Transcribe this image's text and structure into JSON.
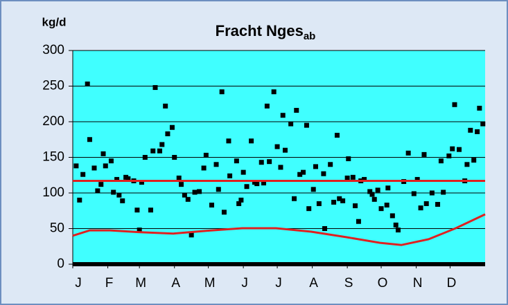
{
  "chart_data": {
    "type": "scatter",
    "title": "Fracht Nges",
    "title_subscript": "ab",
    "y_axis_label": "kg/d",
    "xlim": [
      1,
      366
    ],
    "ylim": [
      0,
      300
    ],
    "yticks": [
      0,
      50,
      100,
      150,
      200,
      250,
      300
    ],
    "xticks": [
      {
        "value": 1,
        "label": "J"
      },
      {
        "value": 32,
        "label": "F"
      },
      {
        "value": 60,
        "label": "M"
      },
      {
        "value": 91,
        "label": "A"
      },
      {
        "value": 121,
        "label": "M"
      },
      {
        "value": 152,
        "label": "J"
      },
      {
        "value": 182,
        "label": "J"
      },
      {
        "value": 213,
        "label": "A"
      },
      {
        "value": 244,
        "label": "S"
      },
      {
        "value": 274,
        "label": "O"
      },
      {
        "value": 305,
        "label": "N"
      },
      {
        "value": 335,
        "label": "D"
      }
    ],
    "grid": true,
    "plot_color": "#40ffff",
    "series": [
      {
        "type": "scatter",
        "color": "#000000",
        "x": [
          4,
          7,
          10,
          14,
          16,
          20,
          23,
          26,
          28,
          30,
          35,
          37,
          40,
          42,
          45,
          48,
          50,
          55,
          58,
          60,
          62,
          65,
          70,
          72,
          74,
          78,
          80,
          83,
          85,
          89,
          91,
          95,
          97,
          100,
          103,
          106,
          109,
          113,
          117,
          119,
          124,
          128,
          130,
          133,
          135,
          139,
          140,
          146,
          148,
          150,
          152,
          155,
          159,
          162,
          164,
          168,
          170,
          173,
          175,
          179,
          182,
          185,
          187,
          189,
          194,
          197,
          199,
          202,
          205,
          208,
          210,
          214,
          216,
          219,
          223,
          224,
          229,
          232,
          235,
          237,
          240,
          244,
          245,
          249,
          251,
          254,
          256,
          259,
          264,
          266,
          268,
          271,
          274,
          279,
          280,
          284,
          287,
          289,
          294,
          298,
          303,
          306,
          309,
          312,
          314,
          319,
          324,
          327,
          329,
          334,
          337,
          339,
          343,
          348,
          350,
          353,
          356,
          359,
          361,
          364
        ],
        "values": [
          138,
          90,
          126,
          253,
          175,
          135,
          103,
          112,
          155,
          138,
          145,
          101,
          119,
          97,
          89,
          122,
          120,
          117,
          76,
          48,
          115,
          150,
          76,
          159,
          248,
          159,
          168,
          222,
          183,
          192,
          150,
          121,
          112,
          97,
          91,
          41,
          101,
          102,
          135,
          153,
          83,
          140,
          105,
          242,
          73,
          173,
          124,
          145,
          85,
          90,
          129,
          109,
          173,
          115,
          113,
          143,
          114,
          222,
          144,
          242,
          165,
          136,
          209,
          160,
          197,
          92,
          216,
          126,
          129,
          195,
          78,
          105,
          137,
          85,
          127,
          50,
          140,
          87,
          181,
          92,
          89,
          121,
          148,
          122,
          82,
          60,
          117,
          119,
          102,
          98,
          91,
          104,
          78,
          83,
          107,
          68,
          55,
          48,
          116,
          156,
          99,
          119,
          79,
          154,
          85,
          100,
          84,
          145,
          101,
          152,
          162,
          224,
          161,
          117,
          140,
          188,
          146,
          186,
          219,
          197
        ]
      },
      {
        "type": "line",
        "color": "#e02020",
        "x": [
          1,
          366
        ],
        "values": [
          117,
          117
        ]
      },
      {
        "type": "line",
        "color": "#e02020",
        "x": [
          1,
          16,
          34,
          59,
          90,
          120,
          151,
          181,
          212,
          243,
          273,
          292,
          316,
          340,
          366
        ],
        "values": [
          40,
          47.5,
          47.5,
          45,
          43,
          47,
          50.5,
          50.5,
          45.6,
          38,
          30,
          27,
          35,
          50.5,
          70
        ]
      }
    ]
  }
}
